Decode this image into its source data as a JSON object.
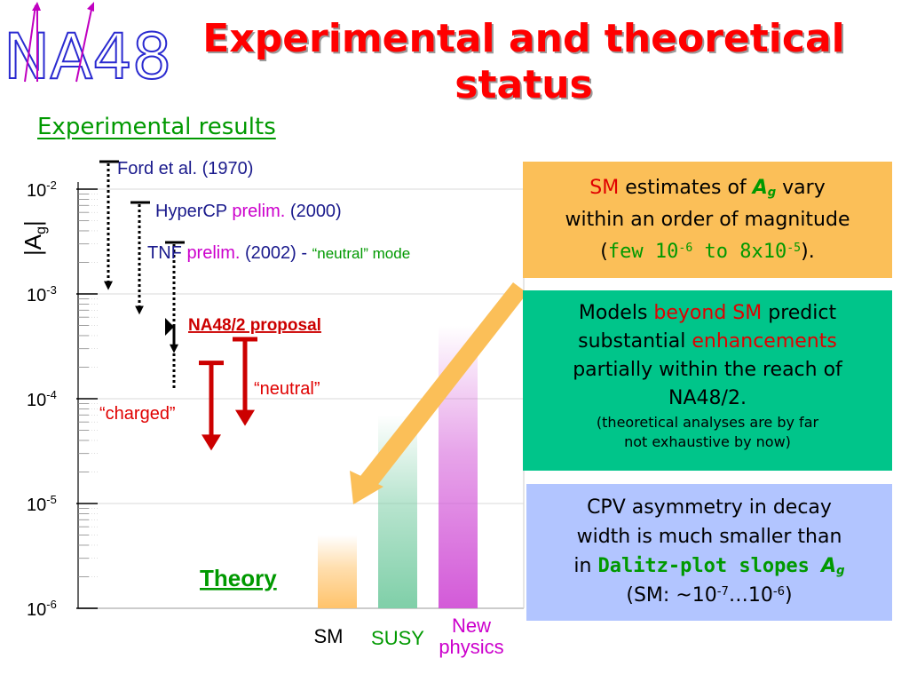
{
  "slide": {
    "title_line1": "Experimental and theoretical",
    "title_line2": "status",
    "logo_text": "NA48",
    "experimental_heading": "Experimental results"
  },
  "chart_data": {
    "type": "bar",
    "ylabel": "|Ag|",
    "ylabel_main": "A",
    "ylabel_sub": "g",
    "yscale": "log",
    "ylim": [
      1e-06,
      0.01
    ],
    "y_ticks": [
      {
        "value": 0.01,
        "base": "10",
        "exp": "-2"
      },
      {
        "value": 0.001,
        "base": "10",
        "exp": "-3"
      },
      {
        "value": 0.0001,
        "base": "10",
        "exp": "-4"
      },
      {
        "value": 1e-05,
        "base": "10",
        "exp": "-5"
      },
      {
        "value": 1e-06,
        "base": "10",
        "exp": "-6"
      }
    ],
    "theory_label": "Theory",
    "categories": [
      {
        "label": "SM",
        "label2": "",
        "value": 5e-06,
        "color": "#ffc36b"
      },
      {
        "label": "SUSY",
        "label2": "",
        "value": 7e-05,
        "color": "#7fcfa8"
      },
      {
        "label": "New",
        "label2": "physics",
        "value": 0.0005,
        "color": "#d35ad8"
      }
    ],
    "upper_limits": [
      {
        "name": "Ford et al.",
        "note": "",
        "year": "(1970)",
        "value": 0.015,
        "arrow_to": 0.0012
      },
      {
        "name": "HyperCP",
        "note": "prelim.",
        "year": "(2000)",
        "value": 0.008,
        "arrow_to": 0.0007
      },
      {
        "name": "TNF",
        "note": "prelim.",
        "year": "(2002) - ",
        "mode": "“neutral” mode",
        "value": 0.0035,
        "arrow_to": 0.0003
      }
    ],
    "proposal_label": "NA48/2 proposal",
    "proposal_arrow_to": 0.0009,
    "sensitivities": [
      {
        "label": "“charged”",
        "top": 0.00022,
        "bottom": 3.2e-05
      },
      {
        "label": "“neutral”",
        "top": 0.00037,
        "bottom": 5.5e-05
      }
    ]
  },
  "boxes": {
    "sm": {
      "l1_sm": "SM",
      "l1_mid": " estimates of ",
      "l1_a": "A",
      "l1_g": "g",
      "l1_end": " vary",
      "l2": "within an order of magnitude",
      "l3_open": "(",
      "l3_few": "few 10",
      "l3_e1": "-6",
      "l3_to": " to 8x10",
      "l3_e2": "-5",
      "l3_close": ")."
    },
    "models": {
      "l1a": "Models ",
      "l1b": "beyond SM",
      "l1c": " predict",
      "l2a": "substantial ",
      "l2b": "enhancements",
      "l3": "partially within the reach of",
      "l4": "NA48/2.",
      "l5": "(theoretical analyses are by far",
      "l6": "not exhaustive by now)"
    },
    "cpv": {
      "l1": "CPV asymmetry in decay",
      "l2": "width is much smaller than",
      "l3a": "in ",
      "l3b": "Dalitz-plot slopes ",
      "l3c": "A",
      "l3d": "g",
      "l4a": "(SM: ~10",
      "l4e1": "-7",
      "l4b": "…10",
      "l4e2": "-6",
      "l4c": ")"
    }
  },
  "colors": {
    "title": "#ff0000",
    "green": "#009900",
    "red": "#e00000",
    "dark_red": "#cc0000",
    "navy": "#1a1a8c",
    "magenta": "#cc00cc",
    "sm_box": "#fbbf58",
    "models_box": "#00c58a",
    "cpv_box": "#b2c5ff",
    "pointer": "#fbbf58"
  }
}
